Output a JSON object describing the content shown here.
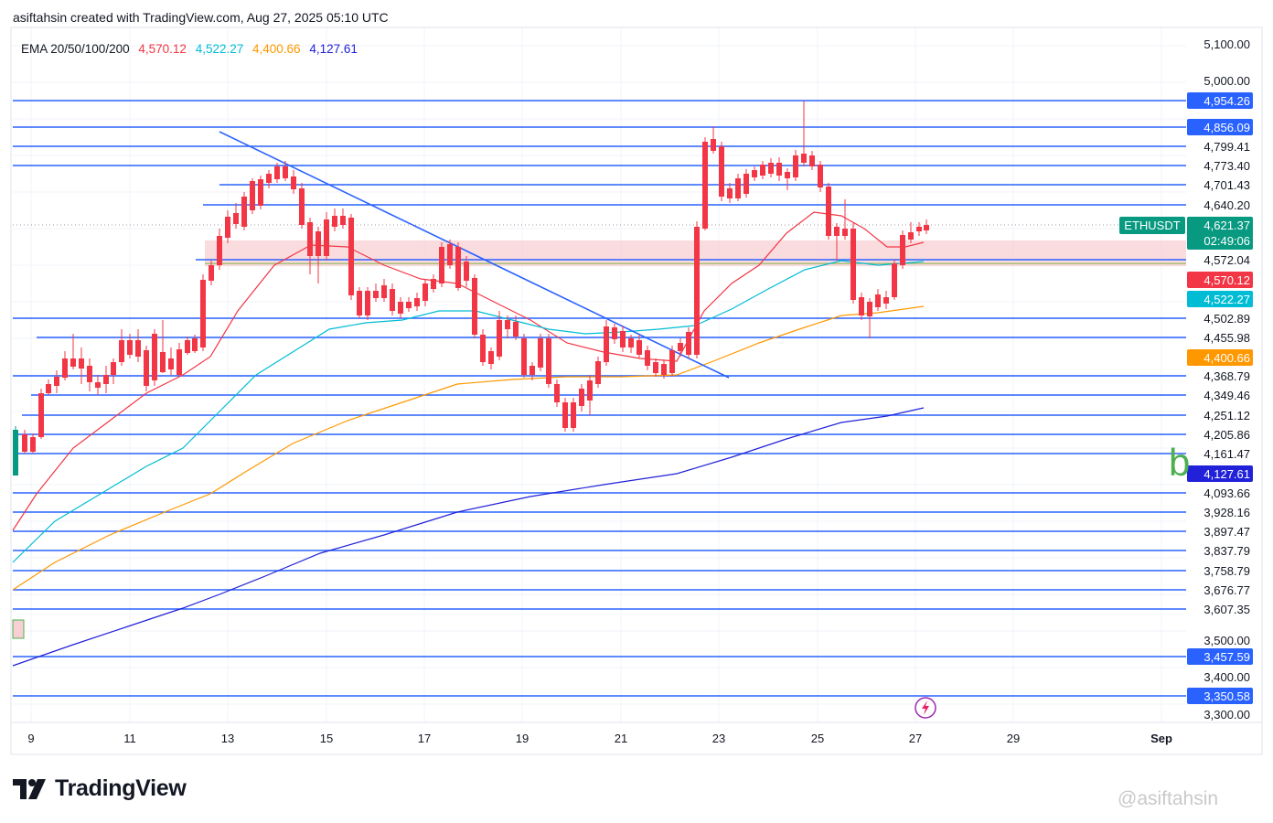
{
  "header": {
    "text": "asiftahsin created with TradingView.com, Aug 27, 2025 05:10 UTC"
  },
  "ema_legend": {
    "label": "EMA 20/50/100/200",
    "values": [
      {
        "value": "4,570.12",
        "color": "#f23645"
      },
      {
        "value": "4,522.27",
        "color": "#00bcd4"
      },
      {
        "value": "4,400.66",
        "color": "#ff9800"
      },
      {
        "value": "4,127.61",
        "color": "#2121d9"
      }
    ]
  },
  "chart_data": {
    "type": "candlestick",
    "symbol": "ETHUSDT",
    "timeframe_countdown": "02:49:06",
    "last_price": 4621.37,
    "price_axis_ticks": [
      "5,100.00",
      "5,000.00",
      "3,500.00",
      "3,400.00",
      "3,300.00"
    ],
    "x_ticks": [
      "9",
      "11",
      "13",
      "15",
      "17",
      "19",
      "21",
      "23",
      "25",
      "27",
      "29",
      "Sep"
    ],
    "horizontal_levels": [
      {
        "value": 4954.26,
        "label": "4,954.26",
        "highlight": true
      },
      {
        "value": 4856.09,
        "label": "4,856.09",
        "highlight": true
      },
      {
        "value": 4799.41,
        "label": "4,799.41",
        "highlight": false
      },
      {
        "value": 4773.4,
        "label": "4,773.40",
        "highlight": false
      },
      {
        "value": 4701.43,
        "label": "4,701.43",
        "highlight": false
      },
      {
        "value": 4640.2,
        "label": "4,640.20",
        "highlight": false
      },
      {
        "value": 4572.04,
        "label": "4,572.04",
        "highlight": false
      },
      {
        "value": 4502.89,
        "label": "4,502.89",
        "highlight": false
      },
      {
        "value": 4455.98,
        "label": "4,455.98",
        "highlight": false
      },
      {
        "value": 4368.79,
        "label": "4,368.79",
        "highlight": false
      },
      {
        "value": 4349.46,
        "label": "4,349.46",
        "highlight": false
      },
      {
        "value": 4251.12,
        "label": "4,251.12",
        "highlight": false
      },
      {
        "value": 4205.86,
        "label": "4,205.86",
        "highlight": false
      },
      {
        "value": 4161.47,
        "label": "4,161.47",
        "highlight": false
      },
      {
        "value": 4093.66,
        "label": "4,093.66",
        "highlight": false
      },
      {
        "value": 3928.16,
        "label": "3,928.16",
        "highlight": false
      },
      {
        "value": 3897.47,
        "label": "3,897.47",
        "highlight": false
      },
      {
        "value": 3837.79,
        "label": "3,837.79",
        "highlight": false
      },
      {
        "value": 3758.79,
        "label": "3,758.79",
        "highlight": false
      },
      {
        "value": 3676.77,
        "label": "3,676.77",
        "highlight": false
      },
      {
        "value": 3607.35,
        "label": "3,607.35",
        "highlight": false
      },
      {
        "value": 3457.59,
        "label": "3,457.59",
        "highlight": true
      },
      {
        "value": 3350.58,
        "label": "3,350.58",
        "highlight": true
      }
    ],
    "price_badges": [
      {
        "label": "4,621.37",
        "value": 4621.37,
        "color": "#089981"
      },
      {
        "label": "4,570.12",
        "value": 4570.12,
        "color": "#f23645"
      },
      {
        "label": "4,522.27",
        "value": 4522.27,
        "color": "#00bcd4"
      },
      {
        "label": "4,400.66",
        "value": 4400.66,
        "color": "#ff9800"
      },
      {
        "label": "4,127.61",
        "value": 4127.61,
        "color": "#2121d9"
      }
    ],
    "colors": {
      "up": "#089981",
      "down": "#f23645",
      "level_line": "#2962ff",
      "trendline": "#2962ff",
      "zone_fill": "#f8d0d4"
    }
  },
  "branding": {
    "logo_text": "TradingView",
    "watermark": "@asiftahsin"
  }
}
